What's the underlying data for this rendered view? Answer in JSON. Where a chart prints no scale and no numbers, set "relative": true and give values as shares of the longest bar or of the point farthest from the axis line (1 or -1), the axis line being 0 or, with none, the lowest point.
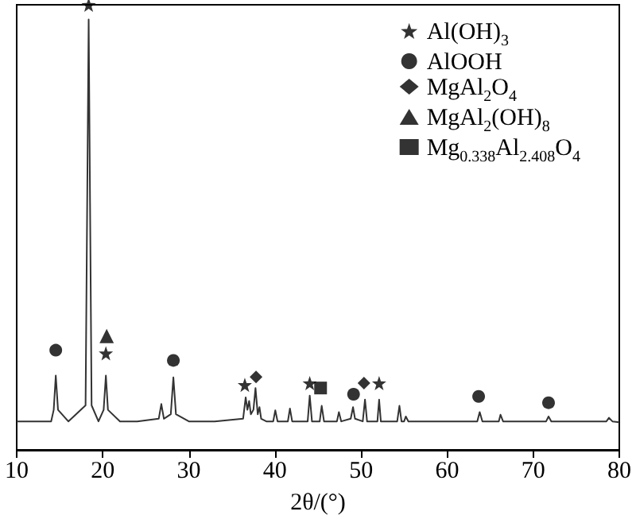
{
  "chart_data": {
    "type": "line",
    "relative": true,
    "xlabel": "2θ/(°)",
    "xlim": [
      10,
      80
    ],
    "xticks": [
      10,
      20,
      30,
      40,
      50,
      60,
      70,
      80
    ],
    "grid": false,
    "legend": "top right",
    "series": [
      {
        "color": "#333333",
        "marker": "none",
        "x": [
          10,
          12,
          14,
          14.3,
          14.54,
          14.8,
          16,
          18.0,
          18.36,
          18.7,
          19.5,
          20.1,
          20.36,
          20.6,
          22,
          24,
          26.5,
          26.8,
          27.1,
          27.9,
          28.2,
          28.5,
          30,
          33,
          36.3,
          36.6,
          36.8,
          37.0,
          37.2,
          37.5,
          37.74,
          38.0,
          38.2,
          38.4,
          39.0,
          39.8,
          40.04,
          40.3,
          41.5,
          41.74,
          42.0,
          43.8,
          44.04,
          44.3,
          45.2,
          45.43,
          45.7,
          47.2,
          47.43,
          47.7,
          48.8,
          49.07,
          49.3,
          50.2,
          50.46,
          50.7,
          51.9,
          52.1,
          52.3,
          54.2,
          54.46,
          54.7,
          55.0,
          55.2,
          55.5,
          58,
          60,
          63.5,
          63.78,
          64.1,
          66.0,
          66.2,
          66.5,
          69,
          71.5,
          71.78,
          72.1,
          75,
          78.5,
          78.8,
          79.2,
          80
        ],
        "values": [
          0.064,
          0.064,
          0.064,
          0.09,
          0.167,
          0.09,
          0.064,
          0.1,
          0.967,
          0.1,
          0.064,
          0.09,
          0.167,
          0.09,
          0.064,
          0.064,
          0.07,
          0.103,
          0.07,
          0.08,
          0.163,
          0.08,
          0.064,
          0.064,
          0.07,
          0.118,
          0.09,
          0.11,
          0.08,
          0.09,
          0.139,
          0.08,
          0.096,
          0.07,
          0.064,
          0.064,
          0.089,
          0.064,
          0.064,
          0.093,
          0.064,
          0.064,
          0.122,
          0.064,
          0.064,
          0.099,
          0.064,
          0.064,
          0.085,
          0.064,
          0.07,
          0.096,
          0.07,
          0.064,
          0.113,
          0.064,
          0.064,
          0.113,
          0.064,
          0.064,
          0.099,
          0.064,
          0.064,
          0.075,
          0.064,
          0.064,
          0.064,
          0.064,
          0.085,
          0.064,
          0.064,
          0.079,
          0.064,
          0.064,
          0.064,
          0.075,
          0.064,
          0.064,
          0.064,
          0.072,
          0.064,
          0.062
        ]
      },
      {
        "type": "scatter",
        "name": "Al(OH)$_{3}$",
        "color": "#000000",
        "marker": "star",
        "x": [
          18.36,
          20.36,
          36.5,
          44.04,
          52.1
        ],
        "values": [
          1,
          0.217,
          0.146,
          0.15,
          0.15
        ]
      },
      {
        "type": "scatter",
        "name": "AlOOH",
        "color": "#000000",
        "marker": "circle",
        "x": [
          14.54,
          28.2,
          49.13,
          63.66,
          71.78
        ],
        "values": [
          0.224,
          0.201,
          0.125,
          0.12,
          0.106
        ]
      },
      {
        "type": "scatter",
        "name": "MgAl$_{2}$O$_{4}$",
        "color": "#000000",
        "marker": "diamond",
        "x": [
          37.8,
          50.34
        ],
        "values": [
          0.164,
          0.15
        ]
      },
      {
        "type": "scatter",
        "name": "MgAl$_{2}$(OH)$_{8}$",
        "color": "#000000",
        "marker": "triangle",
        "x": [
          20.45
        ],
        "values": [
          0.256
        ]
      },
      {
        "type": "scatter",
        "name": "Mg$_{0.338}$Al$_{2.408}$O$_{4}$",
        "color": "#000000",
        "marker": "square",
        "x": [
          45.3
        ],
        "values": [
          0.139
        ]
      }
    ]
  }
}
